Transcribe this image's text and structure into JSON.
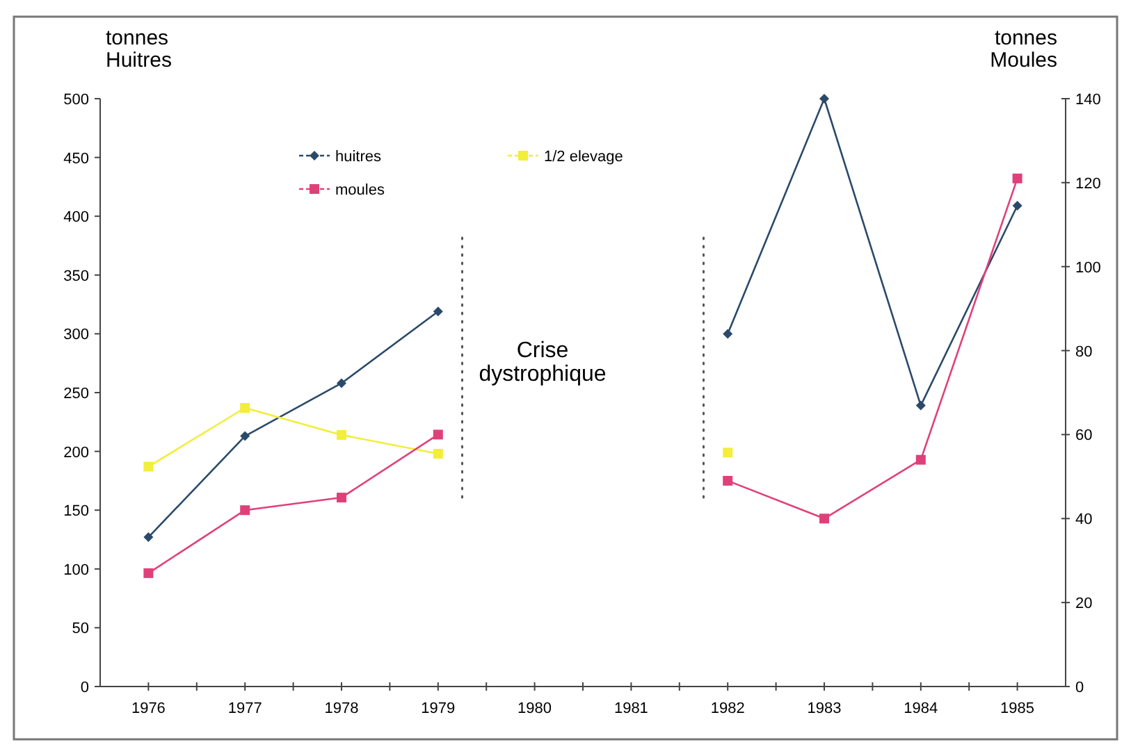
{
  "chart_data": {
    "type": "line",
    "ylabel": "tonnes\nHuitres",
    "y2label": "tonnes\nMoules",
    "x": [
      1976,
      1977,
      1978,
      1979,
      1980,
      1981,
      1982,
      1983,
      1984,
      1985
    ],
    "xlim": [
      1975.5,
      1985.5
    ],
    "xticks": [
      1976,
      1977,
      1978,
      1979,
      1980,
      1981,
      1982,
      1983,
      1984,
      1985,
      {
        "value": 1976.5,
        "label": null
      },
      {
        "value": 1977.5,
        "label": null
      },
      {
        "value": 1978.5,
        "label": null
      },
      {
        "value": 1979.5,
        "label": null
      },
      {
        "value": 1980.5,
        "label": null
      },
      {
        "value": 1981.5,
        "label": null
      },
      {
        "value": 1982.5,
        "label": null
      },
      {
        "value": 1983.5,
        "label": null
      },
      {
        "value": 1984.5,
        "label": null
      }
    ],
    "ylim": [
      0,
      500
    ],
    "yticks": [
      0,
      50,
      100,
      150,
      200,
      250,
      300,
      350,
      400,
      450,
      500
    ],
    "y2lim": [
      0,
      140
    ],
    "y2ticks": [
      0,
      20,
      40,
      60,
      80,
      100,
      120,
      140
    ],
    "series": [
      {
        "name": "huitres",
        "color": "#2b4a6a",
        "marker": "diamond",
        "values": [
          127,
          213,
          258,
          319,
          null,
          null,
          300,
          500,
          239,
          409
        ]
      },
      {
        "name": "1/2 elevage",
        "color": "#f2ee3a",
        "marker": "square",
        "values": [
          187,
          237,
          214,
          198,
          null,
          null,
          199,
          null,
          null,
          null
        ]
      },
      {
        "name": "moules",
        "color": "#e0407a",
        "marker": "square",
        "axis": "y2",
        "values": [
          27,
          42,
          45,
          60,
          null,
          null,
          49,
          40,
          54,
          121
        ]
      }
    ],
    "ref_lines": [
      {
        "axis": "x",
        "value": 1979.25,
        "color": "#555555",
        "line_style": "dotted"
      },
      {
        "axis": "x",
        "value": 1981.75,
        "color": "#555555",
        "line_style": "dotted"
      }
    ],
    "annotations": [
      "Crise\ndystrophique"
    ],
    "legend": "top",
    "grid": false
  }
}
